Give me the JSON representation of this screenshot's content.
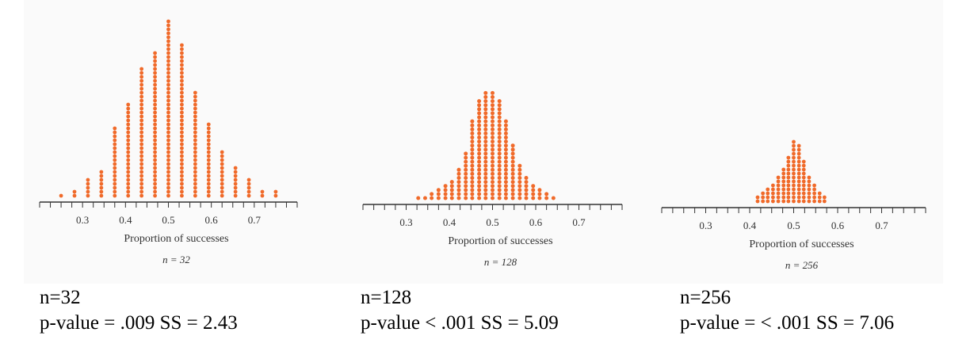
{
  "chart_data": [
    {
      "type": "scatter",
      "subtype": "dot-plot",
      "xlabel": "Proportion of successes",
      "note": "n = 32",
      "xticks": [
        "0.3",
        "0.4",
        "0.5",
        "0.6",
        "0.7"
      ],
      "xlim": [
        0.2,
        0.8
      ],
      "dot_color": "#f06a2a",
      "x": [
        0.25,
        0.28125,
        0.3125,
        0.34375,
        0.375,
        0.40625,
        0.4375,
        0.46875,
        0.5,
        0.53125,
        0.5625,
        0.59375,
        0.625,
        0.65625,
        0.6875,
        0.71875,
        0.75
      ],
      "counts": [
        1,
        2,
        5,
        7,
        18,
        24,
        33,
        37,
        45,
        39,
        27,
        19,
        12,
        8,
        5,
        2,
        2
      ]
    },
    {
      "type": "scatter",
      "subtype": "dot-plot",
      "xlabel": "Proportion of successes",
      "note": "n = 128",
      "xticks": [
        "0.3",
        "0.4",
        "0.5",
        "0.6",
        "0.7"
      ],
      "xlim": [
        0.2,
        0.8
      ],
      "dot_color": "#f06a2a",
      "x": [
        0.328,
        0.344,
        0.359,
        0.375,
        0.391,
        0.406,
        0.422,
        0.438,
        0.453,
        0.469,
        0.484,
        0.5,
        0.516,
        0.531,
        0.547,
        0.563,
        0.578,
        0.594,
        0.609,
        0.625,
        0.641
      ],
      "counts": [
        1,
        1,
        2,
        3,
        4,
        5,
        8,
        12,
        20,
        25,
        27,
        27,
        25,
        20,
        14,
        9,
        6,
        4,
        3,
        2,
        1
      ]
    },
    {
      "type": "scatter",
      "subtype": "dot-plot",
      "xlabel": "Proportion of successes",
      "note": "n = 256",
      "xticks": [
        "0.3",
        "0.4",
        "0.5",
        "0.6",
        "0.7"
      ],
      "xlim": [
        0.2,
        0.8
      ],
      "dot_color": "#f06a2a",
      "x": [
        0.418,
        0.43,
        0.441,
        0.453,
        0.465,
        0.477,
        0.488,
        0.5,
        0.512,
        0.523,
        0.535,
        0.547,
        0.559,
        0.57
      ],
      "counts": [
        2,
        3,
        4,
        5,
        7,
        9,
        12,
        16,
        15,
        11,
        7,
        5,
        3,
        2
      ]
    }
  ],
  "captions": [
    {
      "n": "n=32",
      "stats": "p-value = .009 SS = 2.43"
    },
    {
      "n": "n=128",
      "stats": "p-value < .001 SS = 5.09"
    },
    {
      "n": "n=256",
      "stats": "p-value = < .001 SS = 7.06"
    }
  ]
}
